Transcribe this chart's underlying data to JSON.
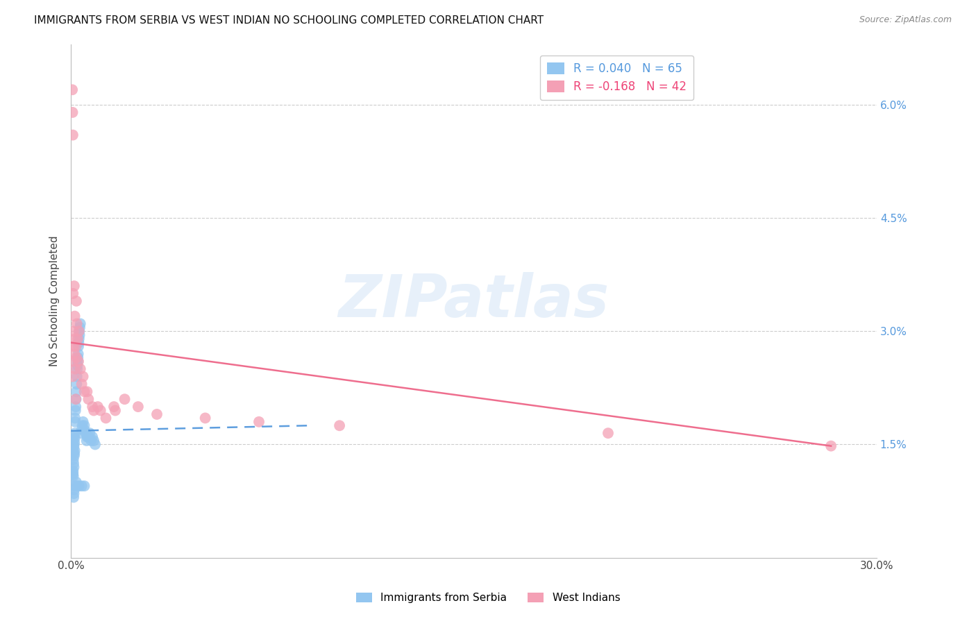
{
  "title": "IMMIGRANTS FROM SERBIA VS WEST INDIAN NO SCHOOLING COMPLETED CORRELATION CHART",
  "source": "Source: ZipAtlas.com",
  "ylabel": "No Schooling Completed",
  "y_tick_labels": [
    "6.0%",
    "4.5%",
    "3.0%",
    "1.5%"
  ],
  "y_tick_values": [
    0.06,
    0.045,
    0.03,
    0.015
  ],
  "xlim": [
    0.0,
    0.3
  ],
  "ylim": [
    0.0,
    0.068
  ],
  "serbia_R": 0.04,
  "serbia_N": 65,
  "westindian_R": -0.168,
  "westindian_N": 42,
  "serbia_color": "#93C6F0",
  "westindian_color": "#F4A0B5",
  "serbia_line_color": "#5599DD",
  "westindian_line_color": "#EE6688",
  "legend_label_serbia": "Immigrants from Serbia",
  "legend_label_westindian": "West Indians",
  "watermark": "ZIPatlas",
  "serbia_line_x0": 0.0,
  "serbia_line_x1": 0.088,
  "serbia_line_y0": 0.0168,
  "serbia_line_y1": 0.0175,
  "wi_line_x0": 0.0,
  "wi_line_x1": 0.283,
  "wi_line_y0": 0.0285,
  "wi_line_y1": 0.0148,
  "serbia_x": [
    0.0008,
    0.001,
    0.0009,
    0.0007,
    0.0006,
    0.0012,
    0.0011,
    0.0013,
    0.0015,
    0.0014,
    0.0011,
    0.0009,
    0.0008,
    0.001,
    0.0007,
    0.0012,
    0.0014,
    0.0013,
    0.0009,
    0.0008,
    0.0016,
    0.0018,
    0.002,
    0.0015,
    0.0017,
    0.0019,
    0.0022,
    0.0021,
    0.0023,
    0.0025,
    0.0024,
    0.0026,
    0.0028,
    0.003,
    0.0032,
    0.0029,
    0.0027,
    0.0031,
    0.0035,
    0.0033,
    0.004,
    0.0038,
    0.0042,
    0.0045,
    0.005,
    0.0048,
    0.0055,
    0.006,
    0.0058,
    0.0065,
    0.007,
    0.0068,
    0.0075,
    0.008,
    0.0085,
    0.009,
    0.0012,
    0.0013,
    0.001,
    0.0011,
    0.002,
    0.0022,
    0.003,
    0.004,
    0.005
  ],
  "serbia_y": [
    0.0155,
    0.015,
    0.0145,
    0.014,
    0.0138,
    0.016,
    0.0148,
    0.0152,
    0.0165,
    0.0158,
    0.012,
    0.013,
    0.0115,
    0.0125,
    0.011,
    0.0135,
    0.0142,
    0.0138,
    0.0108,
    0.0112,
    0.018,
    0.02,
    0.022,
    0.0185,
    0.0195,
    0.021,
    0.024,
    0.023,
    0.025,
    0.026,
    0.0255,
    0.0265,
    0.028,
    0.029,
    0.0295,
    0.0285,
    0.027,
    0.03,
    0.031,
    0.0305,
    0.017,
    0.0165,
    0.0175,
    0.018,
    0.0175,
    0.017,
    0.0165,
    0.016,
    0.0155,
    0.016,
    0.0165,
    0.016,
    0.0155,
    0.016,
    0.0155,
    0.015,
    0.009,
    0.0095,
    0.008,
    0.0085,
    0.01,
    0.0095,
    0.0095,
    0.0095,
    0.0095
  ],
  "wi_x": [
    0.0005,
    0.0006,
    0.0007,
    0.0008,
    0.0009,
    0.001,
    0.0008,
    0.0007,
    0.0012,
    0.0014,
    0.0015,
    0.0013,
    0.0016,
    0.0018,
    0.002,
    0.0022,
    0.0019,
    0.0021,
    0.0025,
    0.0028,
    0.003,
    0.0035,
    0.004,
    0.0045,
    0.005,
    0.006,
    0.0065,
    0.008,
    0.0085,
    0.01,
    0.011,
    0.013,
    0.016,
    0.0165,
    0.02,
    0.025,
    0.032,
    0.05,
    0.07,
    0.1,
    0.2,
    0.283
  ],
  "wi_y": [
    0.062,
    0.059,
    0.056,
    0.035,
    0.03,
    0.028,
    0.026,
    0.024,
    0.036,
    0.032,
    0.029,
    0.027,
    0.025,
    0.021,
    0.034,
    0.031,
    0.028,
    0.0265,
    0.029,
    0.026,
    0.03,
    0.025,
    0.023,
    0.024,
    0.022,
    0.022,
    0.021,
    0.02,
    0.0195,
    0.02,
    0.0195,
    0.0185,
    0.02,
    0.0195,
    0.021,
    0.02,
    0.019,
    0.0185,
    0.018,
    0.0175,
    0.0165,
    0.0148
  ]
}
